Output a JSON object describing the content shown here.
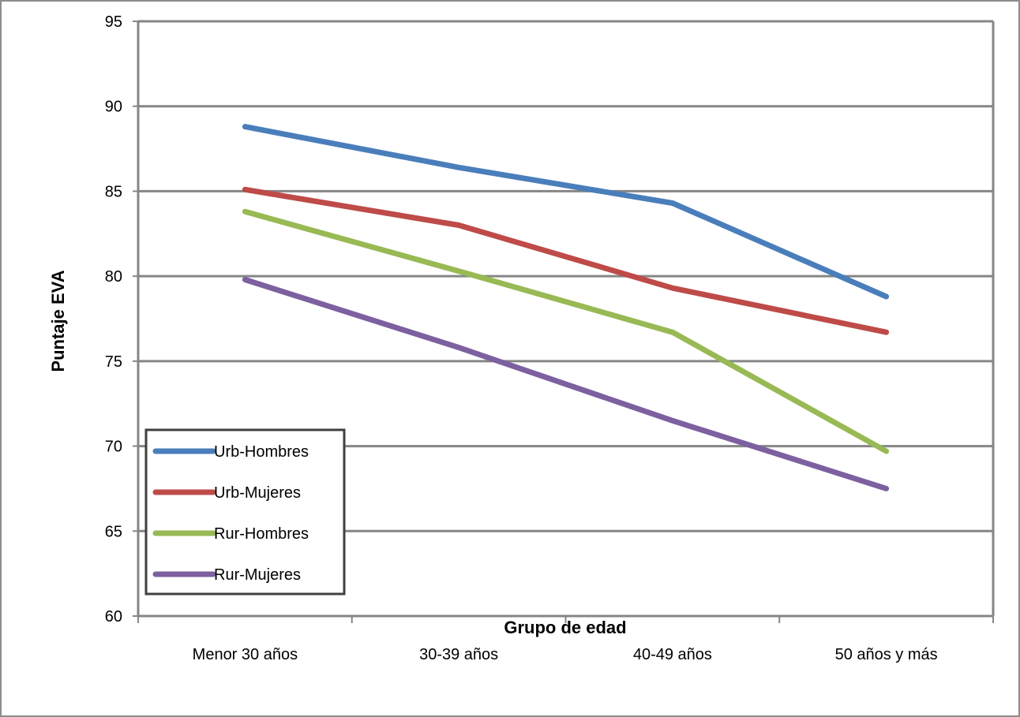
{
  "chart_data": {
    "type": "line",
    "xlabel": "Grupo de edad",
    "ylabel": "Puntaje EVA",
    "categories": [
      "Menor 30 años",
      "30-39 años",
      "40-49 años",
      "50 años y más"
    ],
    "ylim": [
      60,
      95
    ],
    "yticks": [
      60,
      65,
      70,
      75,
      80,
      85,
      90,
      95
    ],
    "grid": true,
    "legend_position": "bottom-left",
    "series": [
      {
        "name": "Urb-Hombres",
        "color": "#4a7ebb",
        "values": [
          88.8,
          86.4,
          84.3,
          78.8
        ]
      },
      {
        "name": "Urb-Mujeres",
        "color": "#be4b48",
        "values": [
          85.1,
          83.0,
          79.3,
          76.7
        ]
      },
      {
        "name": "Rur-Hombres",
        "color": "#98b954",
        "values": [
          83.8,
          80.3,
          76.7,
          69.7
        ]
      },
      {
        "name": "Rur-Mujeres",
        "color": "#7d60a0",
        "values": [
          79.8,
          75.8,
          71.5,
          67.5
        ]
      }
    ]
  }
}
